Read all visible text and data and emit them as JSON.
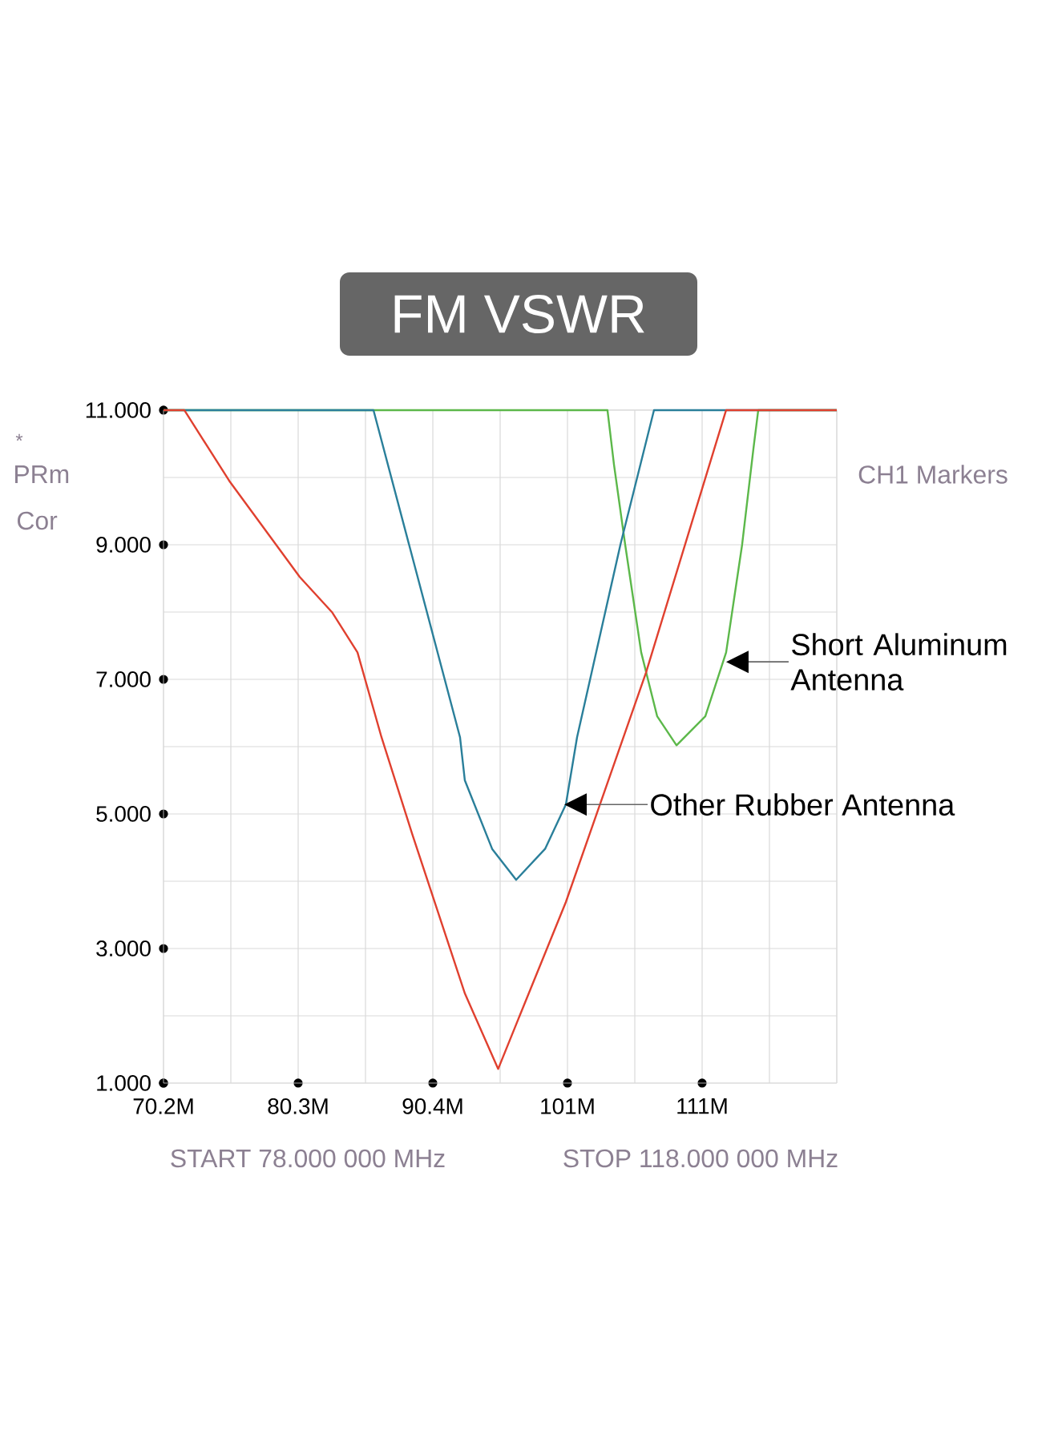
{
  "chart_data": {
    "type": "line",
    "title": "FM VSWR",
    "xlim": [
      70.2,
      120.7
    ],
    "ylim": [
      1,
      11
    ],
    "xticks": [
      {
        "value": 70.2,
        "label": "70.2M"
      },
      {
        "value": 75.25,
        "label": null
      },
      {
        "value": 80.3,
        "label": "80.3M"
      },
      {
        "value": 85.35,
        "label": null
      },
      {
        "value": 90.4,
        "label": "90.4M"
      },
      {
        "value": 95.45,
        "label": null
      },
      {
        "value": 100.5,
        "label": "101M"
      },
      {
        "value": 105.55,
        "label": null
      },
      {
        "value": 110.6,
        "label": "111M"
      },
      {
        "value": 115.65,
        "label": null
      },
      {
        "value": 120.7,
        "label": null
      }
    ],
    "yticks": [
      {
        "value": 1,
        "label": "1.000"
      },
      {
        "value": 2,
        "label": null
      },
      {
        "value": 3,
        "label": "3.000"
      },
      {
        "value": 4,
        "label": null
      },
      {
        "value": 5,
        "label": "5.000"
      },
      {
        "value": 6,
        "label": null
      },
      {
        "value": 7,
        "label": "7.000"
      },
      {
        "value": 8,
        "label": null
      },
      {
        "value": 9,
        "label": "9.000"
      },
      {
        "value": 10,
        "label": null
      },
      {
        "value": 11,
        "label": "11.000"
      }
    ],
    "grid": true,
    "series": [
      {
        "color": "#e0402f",
        "x": [
          70.2,
          71.76,
          75.13,
          80.42,
          82.83,
          84.75,
          86.55,
          88.84,
          92.81,
          95.3,
          96.77,
          100.38,
          106.39,
          112.4,
          120.7
        ],
        "values": [
          11,
          11,
          9.95,
          8.52,
          8.0,
          7.4,
          6.14,
          4.71,
          2.33,
          1.21,
          1.93,
          3.69,
          7.1,
          11,
          11
        ]
      },
      {
        "color": "#2a7f9a",
        "x": [
          70.2,
          85.95,
          92.44,
          92.8,
          94.85,
          96.65,
          98.82,
          100.38,
          101.22,
          104.47,
          106.99,
          120.7
        ],
        "values": [
          11,
          11,
          6.14,
          5.5,
          4.48,
          4.02,
          4.48,
          5.14,
          6.14,
          9.0,
          11,
          11
        ]
      },
      {
        "color": "#5cb84a",
        "x": [
          70.2,
          103.5,
          103.99,
          104.83,
          106.03,
          107.23,
          108.68,
          110.84,
          112.4,
          113.6,
          114.45,
          114.81,
          120.7
        ],
        "values": [
          11,
          11,
          10.19,
          9.0,
          7.4,
          6.45,
          6.02,
          6.45,
          7.4,
          9.0,
          10.43,
          11,
          11
        ]
      }
    ],
    "annotations": [
      "*",
      "PRm",
      "Cor",
      "CH1 Markers",
      "START 78.000 000 MHz",
      "STOP 118.000 000 MHz",
      {
        "text": "Short Aluminum Antenna",
        "x": 112.4,
        "y": 7.26
      },
      {
        "text": "Other Rubber Antenna",
        "x": 100.26,
        "y": 5.14
      }
    ]
  }
}
